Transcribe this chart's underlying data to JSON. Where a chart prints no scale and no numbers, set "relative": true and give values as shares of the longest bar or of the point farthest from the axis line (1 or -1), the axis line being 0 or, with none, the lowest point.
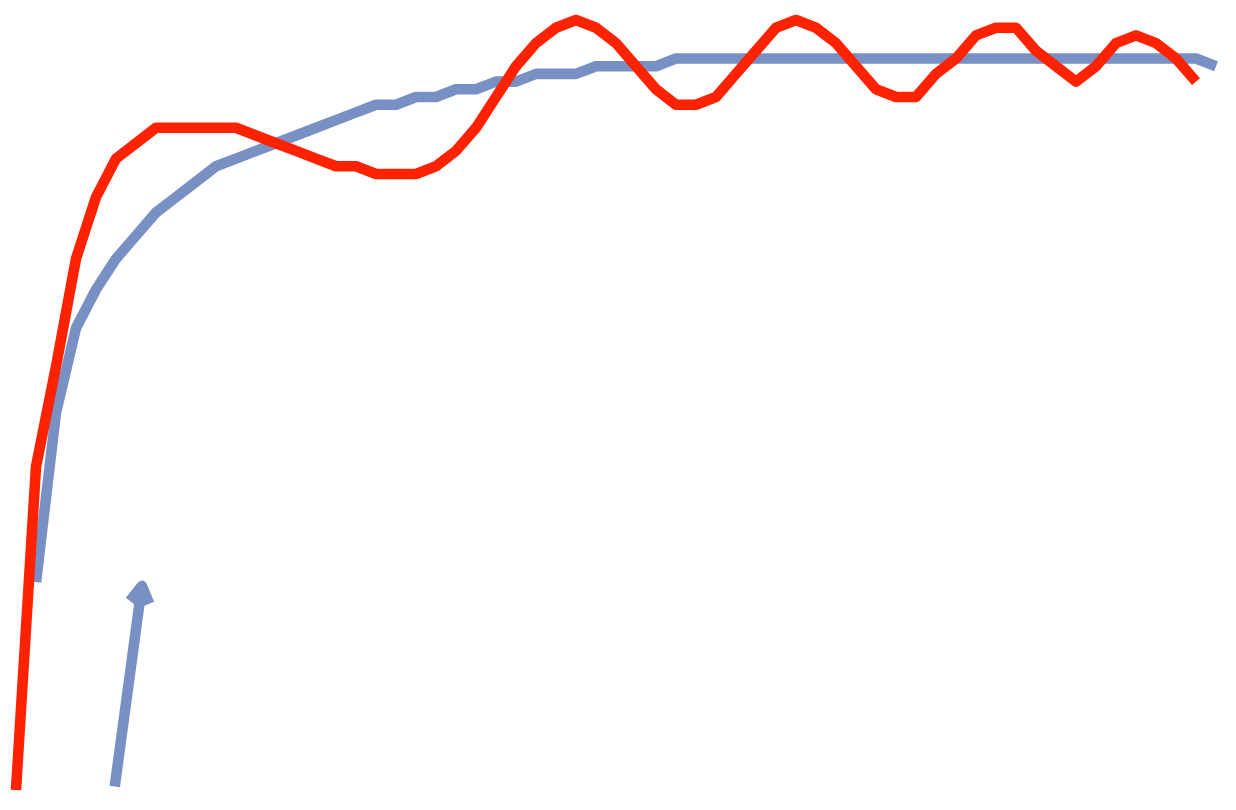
{
  "chart_data": {
    "type": "line",
    "relative": true,
    "grid": false,
    "legend": false,
    "marker": "none",
    "line_style": "solid",
    "categories": [
      null,
      null,
      null,
      null,
      null,
      null,
      null,
      null,
      null,
      null,
      null,
      null,
      null,
      null,
      null,
      null,
      null,
      null,
      null,
      null,
      null,
      null,
      null,
      null,
      null,
      null,
      null,
      null,
      null,
      null,
      null,
      null,
      null,
      null,
      null,
      null,
      null,
      null,
      null,
      null,
      null,
      null,
      null,
      null,
      null,
      null,
      null,
      null,
      null,
      null,
      null,
      null,
      null,
      null,
      null,
      null,
      null,
      null,
      null,
      null,
      null
    ],
    "series": [
      {
        "color": "#7890c4",
        "values": [
          null,
          0.27,
          0.49,
          0.6,
          0.65,
          0.69,
          0.72,
          0.75,
          0.77,
          0.79,
          0.81,
          0.82,
          0.83,
          0.84,
          0.85,
          0.86,
          0.87,
          0.88,
          0.89,
          0.89,
          0.9,
          0.9,
          0.91,
          0.91,
          0.92,
          0.92,
          0.93,
          0.93,
          0.93,
          0.94,
          0.94,
          0.94,
          0.94,
          0.95,
          0.95,
          0.95,
          0.95,
          0.95,
          0.95,
          0.95,
          0.95,
          0.95,
          0.95,
          0.95,
          0.95,
          0.95,
          0.95,
          0.95,
          0.95,
          0.95,
          0.95,
          0.95,
          0.95,
          0.95,
          0.95,
          0.95,
          0.95,
          0.95,
          0.95,
          0.95,
          0.94
        ]
      },
      {
        "color": "#ff2200",
        "values": [
          0,
          0.42,
          0.55,
          0.69,
          0.77,
          0.82,
          0.84,
          0.86,
          0.86,
          0.86,
          0.86,
          0.86,
          0.85,
          0.84,
          0.83,
          0.82,
          0.81,
          0.81,
          0.8,
          0.8,
          0.8,
          0.81,
          0.83,
          0.86,
          0.9,
          0.94,
          0.97,
          0.99,
          1,
          0.99,
          0.97,
          0.94,
          0.91,
          0.89,
          0.89,
          0.9,
          0.93,
          0.96,
          0.99,
          1,
          0.99,
          0.97,
          0.94,
          0.91,
          0.9,
          0.9,
          0.93,
          0.95,
          0.98,
          0.99,
          0.99,
          0.96,
          0.94,
          0.92,
          0.94,
          0.97,
          0.98,
          0.97,
          0.95,
          0.92,
          null
        ]
      }
    ]
  }
}
